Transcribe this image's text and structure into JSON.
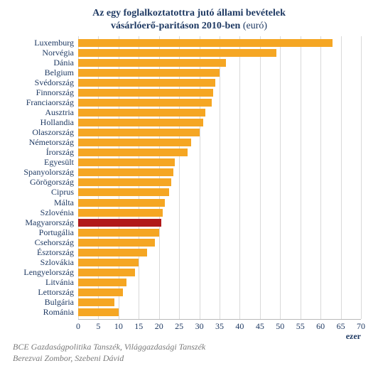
{
  "chart": {
    "type": "bar",
    "title_line1": "Az egy foglalkoztatottra jutó állami bevételek",
    "title_line2_main": "vásárlóerő-paritáson 2010-ben",
    "title_line2_unit": " (euró)",
    "title_fontsize": 14,
    "title_color": "#1f3a63",
    "background_color": "#ffffff",
    "grid_color": "#d9d9d9",
    "label_fontsize": 12,
    "label_color": "#1f3a63",
    "x_axis": {
      "min": 0,
      "max": 70,
      "tick_step": 5,
      "ticks": [
        0,
        5,
        10,
        15,
        20,
        25,
        30,
        35,
        40,
        45,
        50,
        55,
        60,
        65,
        70
      ],
      "unit_label": "ezer"
    },
    "bar_default_color": "#f5a623",
    "bar_highlight_color": "#b11a1a",
    "countries": [
      {
        "name": "Luxemburg",
        "value": 63.0
      },
      {
        "name": "Norvégia",
        "value": 49.0
      },
      {
        "name": "Dánia",
        "value": 36.5
      },
      {
        "name": "Belgium",
        "value": 35.0
      },
      {
        "name": "Svédország",
        "value": 34.0
      },
      {
        "name": "Finnország",
        "value": 33.5
      },
      {
        "name": "Franciaország",
        "value": 33.0
      },
      {
        "name": "Ausztria",
        "value": 31.5
      },
      {
        "name": "Hollandia",
        "value": 31.0
      },
      {
        "name": "Olaszország",
        "value": 30.0
      },
      {
        "name": "Németország",
        "value": 28.0
      },
      {
        "name": "Írország",
        "value": 27.0
      },
      {
        "name": "Egyesült",
        "value": 24.0
      },
      {
        "name": "Spanyolország",
        "value": 23.5
      },
      {
        "name": "Görögország",
        "value": 23.0
      },
      {
        "name": "Ciprus",
        "value": 22.5
      },
      {
        "name": "Málta",
        "value": 21.5
      },
      {
        "name": "Szlovénia",
        "value": 21.0
      },
      {
        "name": "Magyarország",
        "value": 20.5,
        "highlight": true
      },
      {
        "name": "Portugália",
        "value": 20.0
      },
      {
        "name": "Csehország",
        "value": 19.0
      },
      {
        "name": "Észtország",
        "value": 17.0
      },
      {
        "name": "Szlovákia",
        "value": 15.0
      },
      {
        "name": "Lengyelország",
        "value": 14.0
      },
      {
        "name": "Litvánia",
        "value": 12.0
      },
      {
        "name": "Lettország",
        "value": 11.0
      },
      {
        "name": "Bulgária",
        "value": 9.0
      },
      {
        "name": "Románia",
        "value": 10.0
      }
    ],
    "footer_line1": "BCE Gazdaságpolitika Tanszék, Világgazdasági Tanszék",
    "footer_line2": "Berezvai Zombor, Szebeni Dávid"
  }
}
